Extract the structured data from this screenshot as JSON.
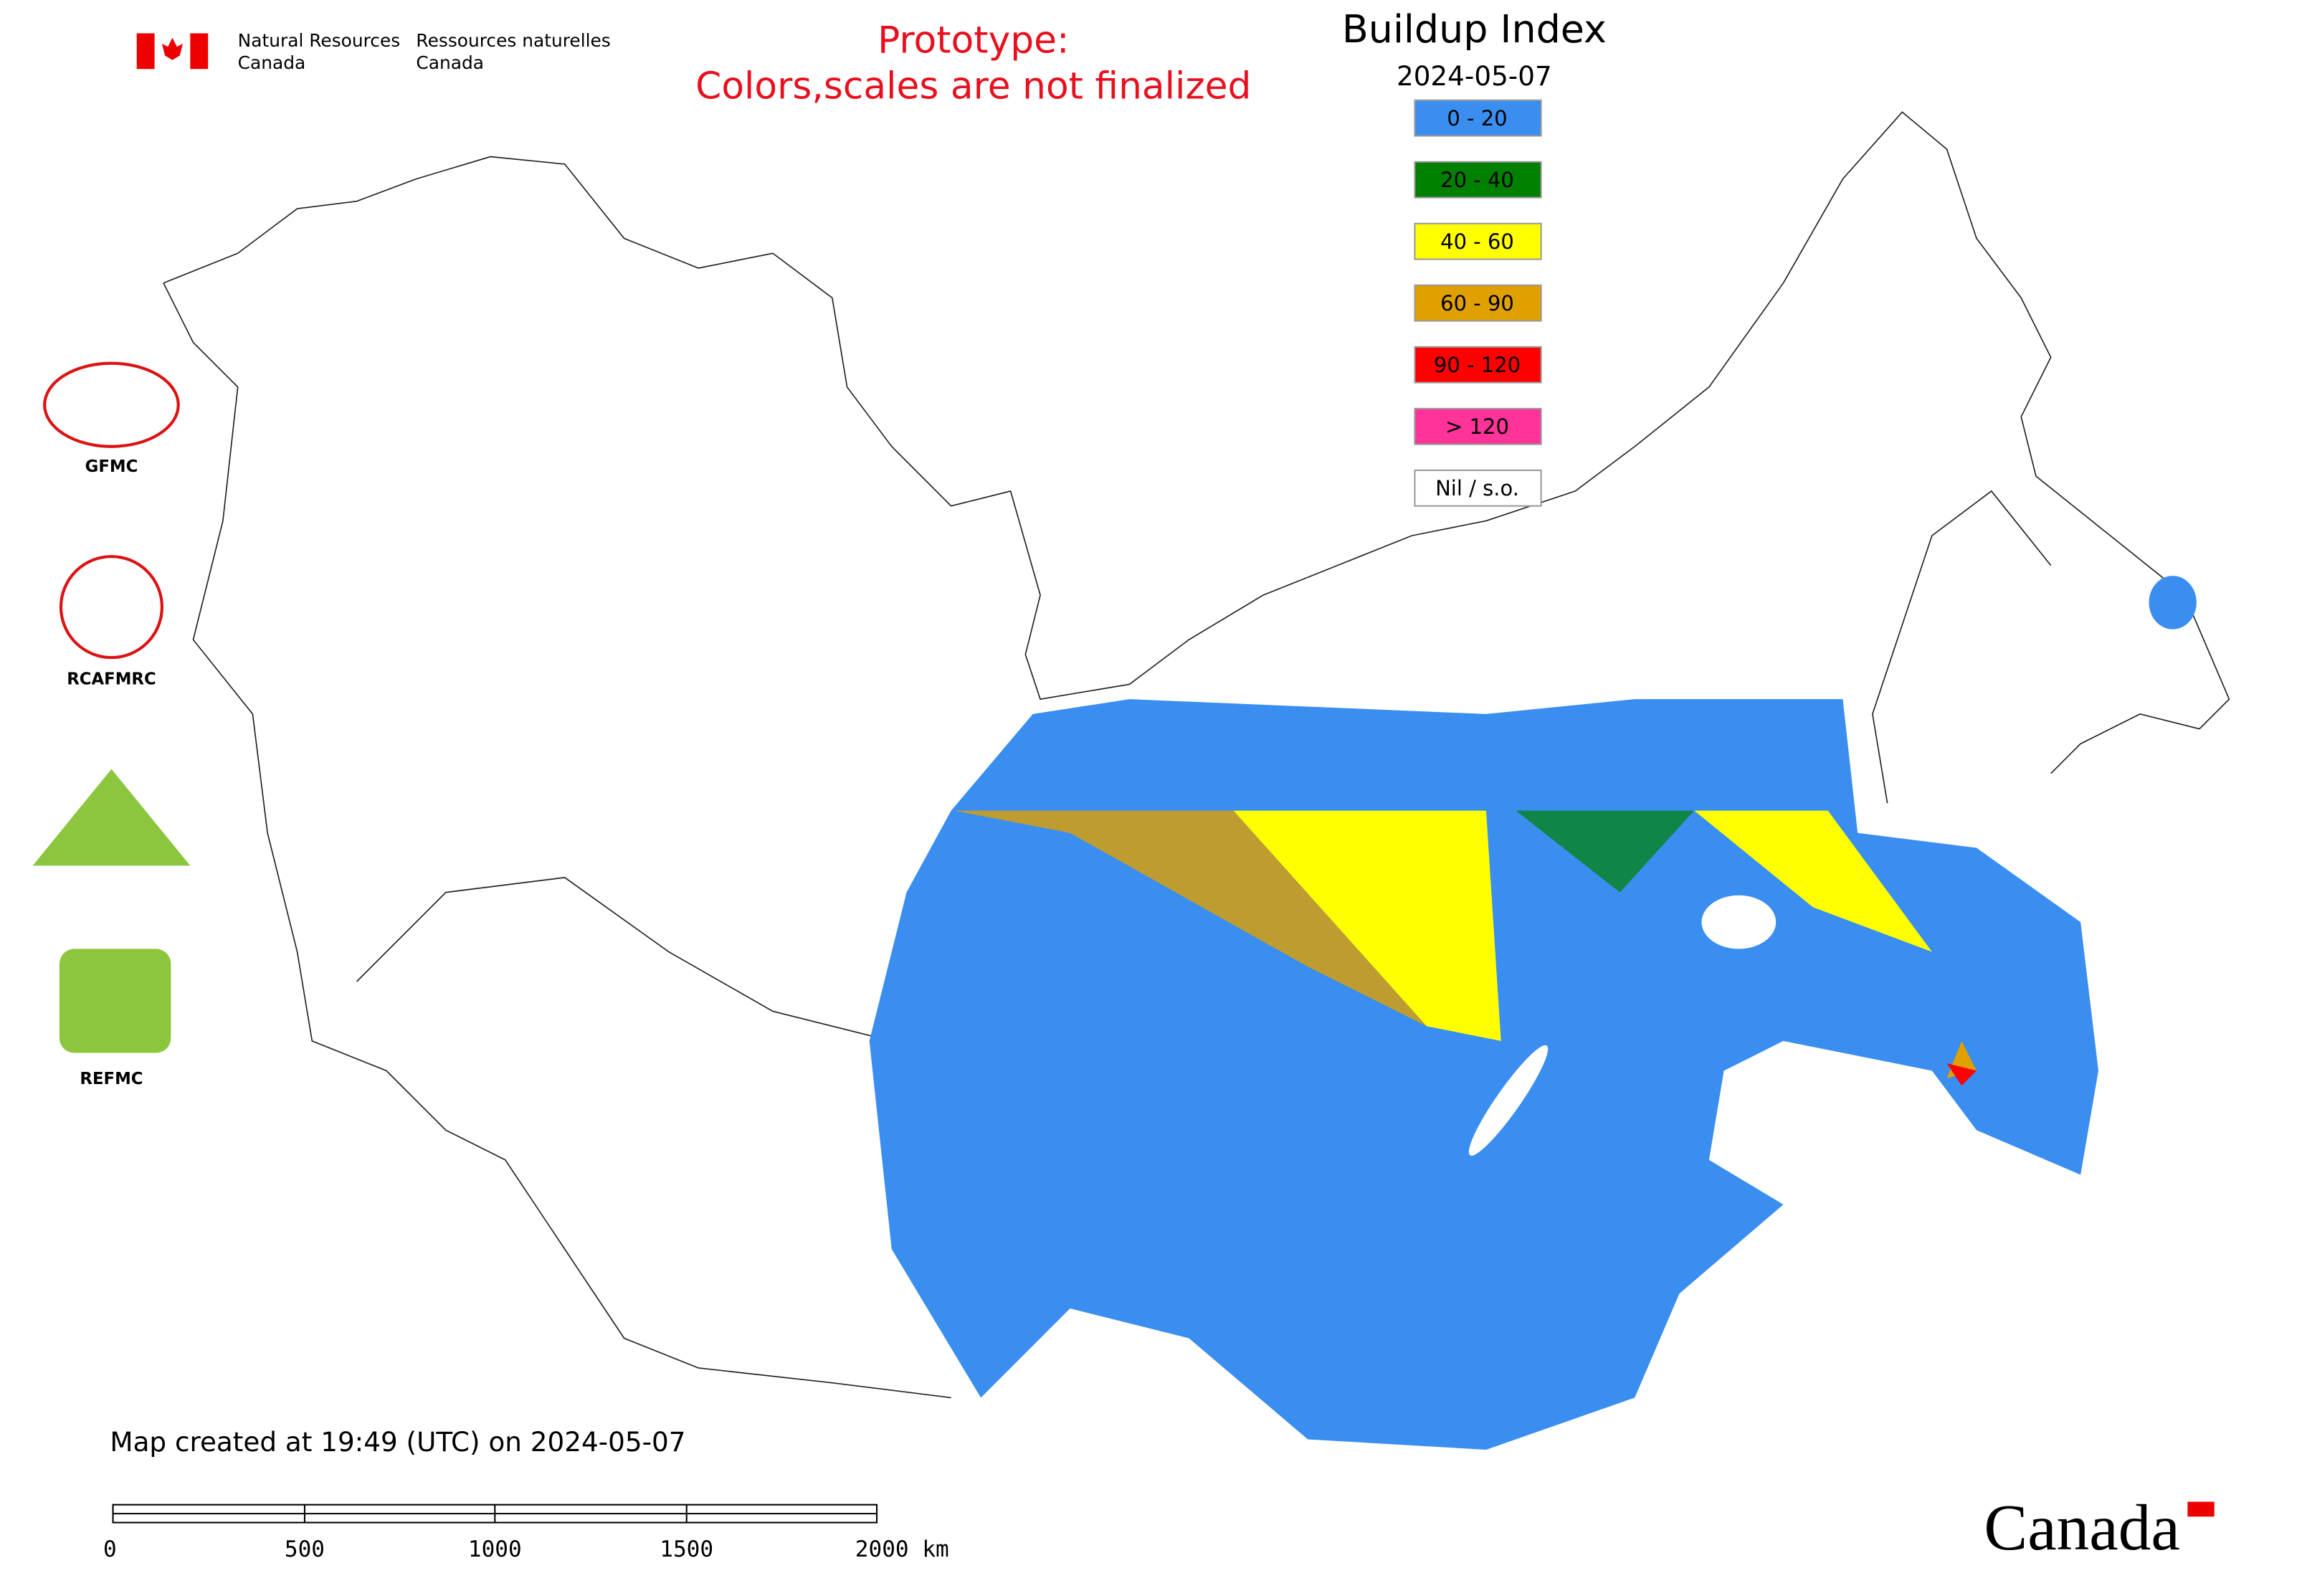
{
  "header": {
    "org_en": [
      "Natural Resources",
      "Canada"
    ],
    "org_fr": [
      "Ressources naturelles",
      "Canada"
    ],
    "notice": [
      "Prototype:",
      "Colors,scales are not finalized"
    ]
  },
  "legend": {
    "title": "Buildup Index",
    "date": "2024-05-07",
    "items": [
      {
        "label": "0 - 20",
        "color": "#3a8ef0"
      },
      {
        "label": "20 - 40",
        "color": "#008000"
      },
      {
        "label": "40 - 60",
        "color": "#ffff00"
      },
      {
        "label": "60 - 90",
        "color": "#e0a000"
      },
      {
        "label": "90 - 120",
        "color": "#ff0000"
      },
      {
        "label": "> 120",
        "color": "#ff3399"
      },
      {
        "label": "Nil / s.o.",
        "color": "#ffffff"
      }
    ]
  },
  "partners": [
    "GFMC",
    "RCAFMRC",
    "REFMC"
  ],
  "footer": {
    "created": "Map created at 19:49 (UTC) on 2024-05-07",
    "scale_labels": [
      "0",
      "500",
      "1000",
      "1500",
      "2000 km"
    ],
    "wordmark": "Canada"
  }
}
